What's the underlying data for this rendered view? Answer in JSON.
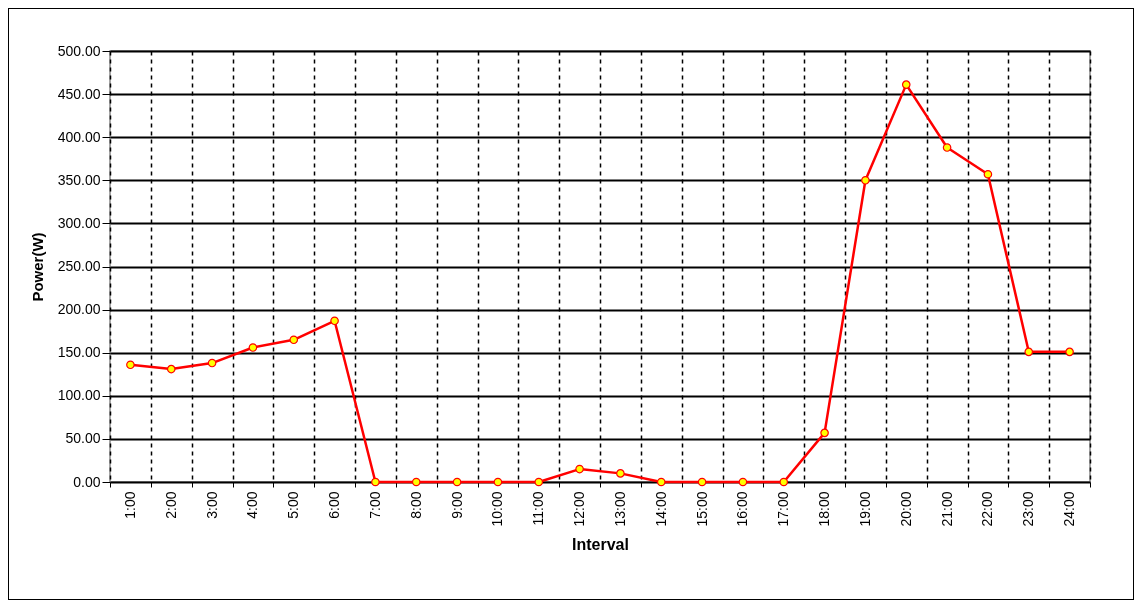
{
  "chart_data": {
    "type": "line",
    "xlabel": "Interval",
    "ylabel": "Power(W)",
    "categories": [
      "1:00",
      "2:00",
      "3:00",
      "4:00",
      "5:00",
      "6:00",
      "7:00",
      "8:00",
      "9:00",
      "10:00",
      "11:00",
      "12:00",
      "13:00",
      "14:00",
      "15:00",
      "16:00",
      "17:00",
      "18:00",
      "19:00",
      "20:00",
      "21:00",
      "22:00",
      "23:00",
      "24:00"
    ],
    "series": [
      {
        "color": "#ff0000",
        "values": [
          136,
          131,
          138,
          156,
          165,
          187,
          0,
          0,
          0,
          0,
          0,
          15,
          10,
          0,
          0,
          0,
          0,
          57,
          350,
          461,
          388,
          357,
          151,
          151
        ]
      }
    ],
    "ylim": [
      0,
      500
    ],
    "yticks": [
      {
        "value": 0,
        "label": "0.00"
      },
      {
        "value": 50,
        "label": "50.00"
      },
      {
        "value": 100,
        "label": "100.00"
      },
      {
        "value": 150,
        "label": "150.00"
      },
      {
        "value": 200,
        "label": "200.00"
      },
      {
        "value": 250,
        "label": "250.00"
      },
      {
        "value": 300,
        "label": "300.00"
      },
      {
        "value": 350,
        "label": "350.00"
      },
      {
        "value": 400,
        "label": "400.00"
      },
      {
        "value": 450,
        "label": "450.00"
      },
      {
        "value": 500,
        "label": "500.00"
      }
    ],
    "grid": true,
    "marker": "circle",
    "line_style": "solid"
  }
}
